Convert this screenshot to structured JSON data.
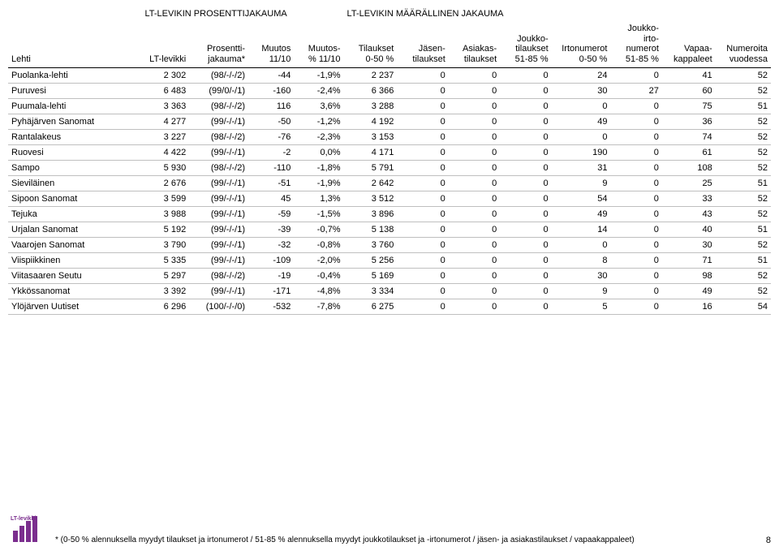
{
  "sections": {
    "left": "LT-LEVIKIN PROSENTTIJAKAUMA",
    "right": "LT-LEVIKIN MÄÄRÄLLINEN JAKAUMA"
  },
  "headers": {
    "lehti": "Lehti",
    "lt_levikki": "LT-levikki",
    "prosentti": "Prosentti-\njakauma*",
    "muutos": "Muutos\n11/10",
    "muutos_pct": "Muutos-\n% 11/10",
    "tilaukset": "Tilaukset\n0-50 %",
    "jasen": "Jäsen-\ntilaukset",
    "asiakas": "Asiakas-\ntilaukset",
    "joukko_t": "Joukko-\ntilaukset\n51-85 %",
    "irto": "Irtonumerot\n0-50 %",
    "joukko_i": "Joukko-\nirto-\nnumerot\n51-85 %",
    "vapaa": "Vapaa-\nkappaleet",
    "numeroita": "Numeroita\nvuodessa"
  },
  "rows": [
    {
      "name": "Puolanka-lehti",
      "lt": "2 302",
      "pj": "(98/-/-/2)",
      "m": "-44",
      "mp": "-1,9%",
      "t": "2 237",
      "j": "0",
      "a": "0",
      "jt": "0",
      "i": "24",
      "ji": "0",
      "v": "41",
      "n": "52"
    },
    {
      "name": "Puruvesi",
      "lt": "6 483",
      "pj": "(99/0/-/1)",
      "m": "-160",
      "mp": "-2,4%",
      "t": "6 366",
      "j": "0",
      "a": "0",
      "jt": "0",
      "i": "30",
      "ji": "27",
      "v": "60",
      "n": "52"
    },
    {
      "name": "Puumala-lehti",
      "lt": "3 363",
      "pj": "(98/-/-/2)",
      "m": "116",
      "mp": "3,6%",
      "t": "3 288",
      "j": "0",
      "a": "0",
      "jt": "0",
      "i": "0",
      "ji": "0",
      "v": "75",
      "n": "51"
    },
    {
      "name": "Pyhäjärven Sanomat",
      "lt": "4 277",
      "pj": "(99/-/-/1)",
      "m": "-50",
      "mp": "-1,2%",
      "t": "4 192",
      "j": "0",
      "a": "0",
      "jt": "0",
      "i": "49",
      "ji": "0",
      "v": "36",
      "n": "52"
    },
    {
      "name": "Rantalakeus",
      "lt": "3 227",
      "pj": "(98/-/-/2)",
      "m": "-76",
      "mp": "-2,3%",
      "t": "3 153",
      "j": "0",
      "a": "0",
      "jt": "0",
      "i": "0",
      "ji": "0",
      "v": "74",
      "n": "52"
    },
    {
      "name": "Ruovesi",
      "lt": "4 422",
      "pj": "(99/-/-/1)",
      "m": "-2",
      "mp": "0,0%",
      "t": "4 171",
      "j": "0",
      "a": "0",
      "jt": "0",
      "i": "190",
      "ji": "0",
      "v": "61",
      "n": "52"
    },
    {
      "name": "Sampo",
      "lt": "5 930",
      "pj": "(98/-/-/2)",
      "m": "-110",
      "mp": "-1,8%",
      "t": "5 791",
      "j": "0",
      "a": "0",
      "jt": "0",
      "i": "31",
      "ji": "0",
      "v": "108",
      "n": "52"
    },
    {
      "name": "Sieviläinen",
      "lt": "2 676",
      "pj": "(99/-/-/1)",
      "m": "-51",
      "mp": "-1,9%",
      "t": "2 642",
      "j": "0",
      "a": "0",
      "jt": "0",
      "i": "9",
      "ji": "0",
      "v": "25",
      "n": "51"
    },
    {
      "name": "Sipoon Sanomat",
      "lt": "3 599",
      "pj": "(99/-/-/1)",
      "m": "45",
      "mp": "1,3%",
      "t": "3 512",
      "j": "0",
      "a": "0",
      "jt": "0",
      "i": "54",
      "ji": "0",
      "v": "33",
      "n": "52"
    },
    {
      "name": "Tejuka",
      "lt": "3 988",
      "pj": "(99/-/-/1)",
      "m": "-59",
      "mp": "-1,5%",
      "t": "3 896",
      "j": "0",
      "a": "0",
      "jt": "0",
      "i": "49",
      "ji": "0",
      "v": "43",
      "n": "52"
    },
    {
      "name": "Urjalan Sanomat",
      "lt": "5 192",
      "pj": "(99/-/-/1)",
      "m": "-39",
      "mp": "-0,7%",
      "t": "5 138",
      "j": "0",
      "a": "0",
      "jt": "0",
      "i": "14",
      "ji": "0",
      "v": "40",
      "n": "51"
    },
    {
      "name": "Vaarojen Sanomat",
      "lt": "3 790",
      "pj": "(99/-/-/1)",
      "m": "-32",
      "mp": "-0,8%",
      "t": "3 760",
      "j": "0",
      "a": "0",
      "jt": "0",
      "i": "0",
      "ji": "0",
      "v": "30",
      "n": "52"
    },
    {
      "name": "Viispiikkinen",
      "lt": "5 335",
      "pj": "(99/-/-/1)",
      "m": "-109",
      "mp": "-2,0%",
      "t": "5 256",
      "j": "0",
      "a": "0",
      "jt": "0",
      "i": "8",
      "ji": "0",
      "v": "71",
      "n": "51"
    },
    {
      "name": "Viitasaaren Seutu",
      "lt": "5 297",
      "pj": "(98/-/-/2)",
      "m": "-19",
      "mp": "-0,4%",
      "t": "5 169",
      "j": "0",
      "a": "0",
      "jt": "0",
      "i": "30",
      "ji": "0",
      "v": "98",
      "n": "52"
    },
    {
      "name": "Ykkössanomat",
      "lt": "3 392",
      "pj": "(99/-/-/1)",
      "m": "-171",
      "mp": "-4,8%",
      "t": "3 334",
      "j": "0",
      "a": "0",
      "jt": "0",
      "i": "9",
      "ji": "0",
      "v": "49",
      "n": "52"
    },
    {
      "name": "Ylöjärven Uutiset",
      "lt": "6 296",
      "pj": "(100/-/-/0)",
      "m": "-532",
      "mp": "-7,8%",
      "t": "6 275",
      "j": "0",
      "a": "0",
      "jt": "0",
      "i": "5",
      "ji": "0",
      "v": "16",
      "n": "54"
    }
  ],
  "footnote": "* (0-50 % alennuksella myydyt tilaukset ja irtonumerot / 51-85 % alennuksella myydyt joukkotilaukset ja -irtonumerot / jäsen- ja asiakastilaukset / vapaakappaleet)",
  "pagenum": "8",
  "logo": {
    "text_top": "LT-levikki",
    "bar_colors": [
      "#7b2e8e",
      "#7b2e8e",
      "#7b2e8e",
      "#7b2e8e"
    ]
  },
  "colwidths": [
    "140",
    "50",
    "62",
    "48",
    "52",
    "56",
    "54",
    "54",
    "54",
    "62",
    "54",
    "56",
    "58"
  ]
}
